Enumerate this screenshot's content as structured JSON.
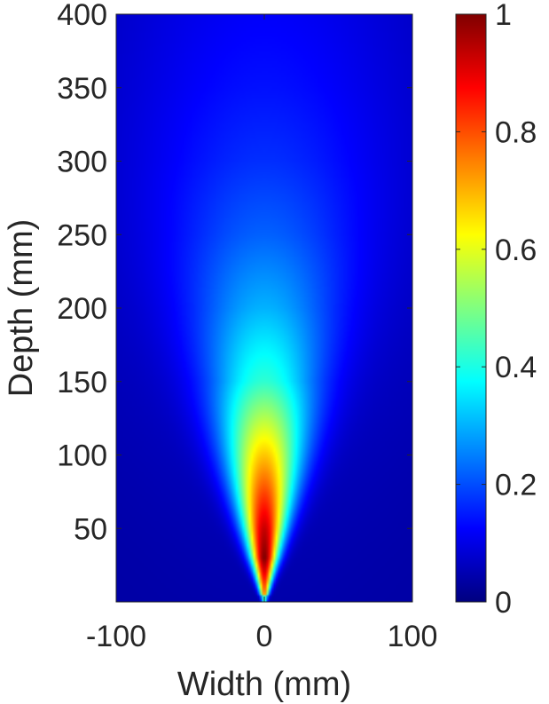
{
  "chart_data": {
    "type": "heatmap",
    "title": "",
    "xlabel": "Width (mm)",
    "ylabel": "Depth (mm)",
    "xlim": [
      -100,
      100
    ],
    "ylim": [
      0,
      400
    ],
    "x_ticks": [
      -100,
      0,
      100
    ],
    "x_tick_labels": [
      "-100",
      "0",
      "100"
    ],
    "y_ticks": [
      50,
      100,
      150,
      200,
      250,
      300,
      350,
      400
    ],
    "y_tick_labels": [
      "50",
      "100",
      "150",
      "200",
      "250",
      "300",
      "350",
      "400"
    ],
    "colormap": "jet",
    "clim": [
      0,
      1
    ],
    "colorbar": {
      "ticks": [
        0,
        0.2,
        0.4,
        0.6,
        0.8,
        1
      ],
      "tick_labels": [
        "0",
        "0.2",
        "0.4",
        "0.6",
        "0.8",
        "1"
      ],
      "location": "right"
    },
    "field": {
      "description": "normalized intensity, peak 1 at x=0, depth ~30 mm; beam narrows to source at depth 0 and spreads with depth",
      "peak_depth_mm": 30,
      "peak_value": 1,
      "samples_along_center": [
        {
          "depth": 5,
          "value": 0.75
        },
        {
          "depth": 30,
          "value": 1.0
        },
        {
          "depth": 50,
          "value": 0.93
        },
        {
          "depth": 100,
          "value": 0.68
        },
        {
          "depth": 150,
          "value": 0.42
        },
        {
          "depth": 200,
          "value": 0.3
        },
        {
          "depth": 250,
          "value": 0.22
        },
        {
          "depth": 300,
          "value": 0.17
        },
        {
          "depth": 350,
          "value": 0.14
        },
        {
          "depth": 400,
          "value": 0.12
        }
      ]
    }
  }
}
